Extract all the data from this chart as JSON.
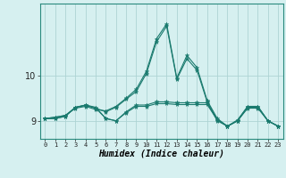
{
  "xlabel": "Humidex (Indice chaleur)",
  "background_color": "#d6f0f0",
  "grid_color": "#aed4d4",
  "line_color": "#1a7a6e",
  "x_values": [
    0,
    1,
    2,
    3,
    4,
    5,
    6,
    7,
    8,
    9,
    10,
    11,
    12,
    13,
    14,
    15,
    16,
    17,
    18,
    19,
    20,
    21,
    22,
    23
  ],
  "series": [
    [
      9.05,
      9.05,
      9.1,
      9.3,
      9.35,
      9.3,
      9.05,
      9.0,
      9.18,
      9.32,
      9.32,
      9.38,
      9.38,
      9.36,
      9.36,
      9.36,
      9.36,
      9.02,
      8.88,
      9.0,
      9.28,
      9.28,
      9.0,
      8.88
    ],
    [
      9.05,
      9.08,
      9.12,
      9.3,
      9.34,
      9.28,
      9.2,
      9.3,
      9.48,
      9.65,
      10.05,
      10.75,
      11.1,
      9.92,
      10.38,
      10.12,
      9.42,
      9.02,
      8.88,
      9.0,
      9.3,
      9.3,
      9.0,
      8.88
    ],
    [
      9.05,
      9.08,
      9.12,
      9.28,
      9.32,
      9.25,
      9.22,
      9.32,
      9.5,
      9.7,
      10.1,
      10.82,
      11.15,
      9.95,
      10.45,
      10.18,
      9.45,
      9.05,
      8.88,
      9.0,
      9.32,
      9.32,
      9.0,
      8.88
    ],
    [
      9.05,
      9.05,
      9.1,
      9.3,
      9.35,
      9.28,
      9.05,
      9.0,
      9.2,
      9.35,
      9.35,
      9.42,
      9.42,
      9.4,
      9.4,
      9.4,
      9.4,
      9.0,
      8.88,
      9.02,
      9.32,
      9.32,
      9.0,
      8.88
    ]
  ],
  "ylim": [
    8.6,
    11.6
  ],
  "yticks": [
    9,
    10
  ],
  "xticks": [
    0,
    1,
    2,
    3,
    4,
    5,
    6,
    7,
    8,
    9,
    10,
    11,
    12,
    13,
    14,
    15,
    16,
    17,
    18,
    19,
    20,
    21,
    22,
    23
  ]
}
